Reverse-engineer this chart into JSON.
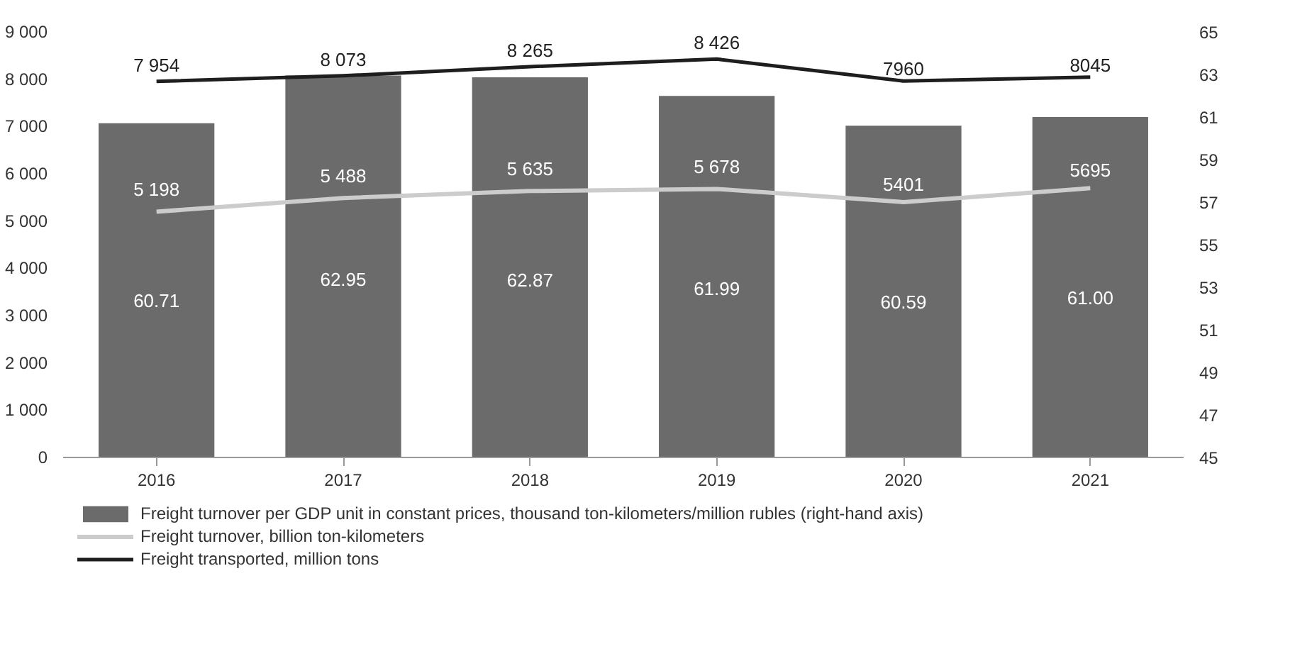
{
  "chart_data": {
    "type": "bar",
    "categories": [
      "2016",
      "2017",
      "2018",
      "2019",
      "2020",
      "2021"
    ],
    "series": [
      {
        "name": "Freight turnover per GDP unit in constant prices, thousand ton-kilometers/million rubles (right-hand axis)",
        "axis": "y2",
        "color": "#6b6b6b",
        "values": [
          60.71,
          62.95,
          62.87,
          61.99,
          60.59,
          61.0
        ],
        "value_labels": [
          "60.71",
          "62.95",
          "62.87",
          "61.99",
          "60.59",
          "61.00"
        ]
      },
      {
        "name": "Freight turnover, billion ton-kilometers",
        "type": "line",
        "color": "#cccccc",
        "values": [
          5198,
          5488,
          5635,
          5678,
          5401,
          5695
        ],
        "value_labels": [
          "5 198",
          "5 488",
          "5 635",
          "5 678",
          "5401",
          "5695"
        ]
      },
      {
        "name": "Freight transported, million tons",
        "type": "line",
        "color": "#1e1e1e",
        "values": [
          7954,
          8073,
          8265,
          8426,
          7960,
          8045
        ],
        "value_labels": [
          "7 954",
          "8 073",
          "8 265",
          "8 426",
          "7960",
          "8045"
        ]
      }
    ],
    "ylim": [
      0,
      9000
    ],
    "yticks": [
      0,
      {
        "value": 1000,
        "label": "1 000"
      },
      {
        "value": 2000,
        "label": "2 000"
      },
      {
        "value": 3000,
        "label": "3 000"
      },
      {
        "value": 4000,
        "label": "4 000"
      },
      {
        "value": 5000,
        "label": "5 000"
      },
      {
        "value": 6000,
        "label": "6 000"
      },
      {
        "value": 7000,
        "label": "7 000"
      },
      {
        "value": 8000,
        "label": "8 000"
      },
      {
        "value": 9000,
        "label": "9 000"
      }
    ],
    "y2lim": [
      45,
      65
    ],
    "y2ticks": [
      45,
      47,
      49,
      51,
      53,
      55,
      57,
      59,
      61,
      63,
      65
    ],
    "legend": "bottom"
  }
}
